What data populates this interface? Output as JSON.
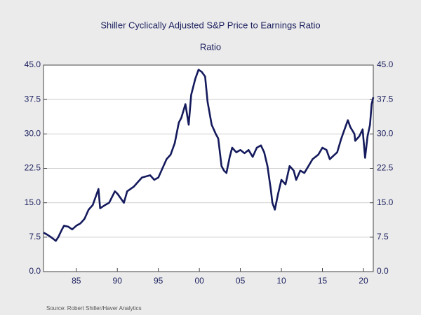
{
  "chart_data": {
    "type": "line",
    "title": "Shiller Cyclically Adjusted S&P Price to Earnings Ratio",
    "subtitle": "Ratio",
    "source": "Source:  Robert Shiller/Haver Analytics",
    "x": [
      1981.0,
      1981.5,
      1982.0,
      1982.5,
      1982.8,
      1983.2,
      1983.5,
      1984.0,
      1984.5,
      1985.0,
      1985.5,
      1986.0,
      1986.5,
      1987.0,
      1987.7,
      1987.9,
      1988.5,
      1989.0,
      1989.7,
      1990.0,
      1990.8,
      1991.2,
      1992.0,
      1992.5,
      1993.0,
      1994.0,
      1994.5,
      1995.0,
      1995.5,
      1996.0,
      1996.5,
      1997.0,
      1997.5,
      1997.8,
      1998.3,
      1998.7,
      1999.0,
      1999.5,
      1999.9,
      2000.3,
      2000.7,
      2001.0,
      2001.5,
      2002.0,
      2002.3,
      2002.7,
      2003.0,
      2003.3,
      2003.7,
      2004.0,
      2004.5,
      2005.0,
      2005.5,
      2006.0,
      2006.5,
      2007.0,
      2007.5,
      2007.9,
      2008.3,
      2008.7,
      2008.9,
      2009.2,
      2009.6,
      2010.0,
      2010.5,
      2011.0,
      2011.5,
      2011.8,
      2012.3,
      2012.8,
      2013.3,
      2013.8,
      2014.5,
      2015.0,
      2015.5,
      2015.9,
      2016.2,
      2016.8,
      2017.3,
      2017.9,
      2018.1,
      2018.4,
      2018.9,
      2019.0,
      2019.5,
      2019.9,
      2020.2,
      2020.5,
      2020.8,
      2021.0,
      2021.2
    ],
    "series": [
      {
        "name": "Ratio",
        "color": "#141a5c",
        "values": [
          8.5,
          8.0,
          7.4,
          6.7,
          7.5,
          9.0,
          10.0,
          9.8,
          9.2,
          10.0,
          10.5,
          11.5,
          13.5,
          14.5,
          18.0,
          13.8,
          14.5,
          15.0,
          17.5,
          17.0,
          15.0,
          17.5,
          18.5,
          19.5,
          20.5,
          21.0,
          20.0,
          20.5,
          22.5,
          24.5,
          25.5,
          28.0,
          32.5,
          33.5,
          36.5,
          32.0,
          38.5,
          42.0,
          44.0,
          43.5,
          42.5,
          37.0,
          32.0,
          30.0,
          29.0,
          23.0,
          22.0,
          21.5,
          25.0,
          27.0,
          26.0,
          26.5,
          25.8,
          26.5,
          25.0,
          27.0,
          27.5,
          26.0,
          23.0,
          18.0,
          15.0,
          13.5,
          17.0,
          20.0,
          19.0,
          23.0,
          22.0,
          20.0,
          22.0,
          21.5,
          23.0,
          24.5,
          25.5,
          27.0,
          26.5,
          24.5,
          25.0,
          26.0,
          29.0,
          32.0,
          33.0,
          31.5,
          30.0,
          28.5,
          29.5,
          31.0,
          24.8,
          29.5,
          32.0,
          36.5,
          38.0
        ]
      }
    ],
    "xlim": [
      1981,
      2021.2
    ],
    "xticks": [
      {
        "value": 1985,
        "label": "85"
      },
      {
        "value": 1990,
        "label": "90"
      },
      {
        "value": 1995,
        "label": "95"
      },
      {
        "value": 2000,
        "label": "00"
      },
      {
        "value": 2005,
        "label": "05"
      },
      {
        "value": 2010,
        "label": "10"
      },
      {
        "value": 2015,
        "label": "15"
      },
      {
        "value": 2020,
        "label": "20"
      }
    ],
    "ylim": [
      0,
      45
    ],
    "yticks": [
      {
        "value": 0,
        "label": "0.0"
      },
      7.5,
      {
        "value": 15,
        "label": "15.0"
      },
      22.5,
      {
        "value": 30,
        "label": "30.0"
      },
      37.5,
      {
        "value": 45,
        "label": "45.0"
      }
    ],
    "y2lim": [
      0,
      45
    ],
    "y2ticks": [
      {
        "value": 0,
        "label": "0.0"
      },
      7.5,
      {
        "value": 15,
        "label": "15.0"
      },
      22.5,
      {
        "value": 30,
        "label": "30.0"
      },
      37.5,
      {
        "value": 45,
        "label": "45.0"
      }
    ],
    "grid": true
  }
}
